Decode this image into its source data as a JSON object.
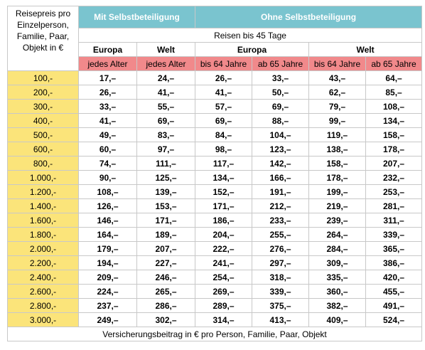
{
  "header": {
    "corner_label": "Reisepreis pro Einzelperson, Familie, Paar, Objekt in €",
    "group_with": "Mit Selbstbeteiligung",
    "group_without": "Ohne Selbstbeteiligung",
    "duration": "Reisen bis 45 Tage",
    "region_europa_1": "Europa",
    "region_welt_1": "Welt",
    "region_europa_2": "Europa",
    "region_welt_2": "Welt",
    "age_1": "jedes Alter",
    "age_2": "jedes Alter",
    "age_3": "bis 64 Jahre",
    "age_4": "ab 65 Jahre",
    "age_5": "bis 64 Jahre",
    "age_6": "ab 65 Jahre"
  },
  "rows": [
    {
      "price": "100,-",
      "v": [
        "17,–",
        "24,–",
        "26,–",
        "33,–",
        "43,–",
        "64,–"
      ]
    },
    {
      "price": "200,-",
      "v": [
        "26,–",
        "41,–",
        "41,–",
        "50,–",
        "62,–",
        "85,–"
      ]
    },
    {
      "price": "300,-",
      "v": [
        "33,–",
        "55,–",
        "57,–",
        "69,–",
        "79,–",
        "108,–"
      ]
    },
    {
      "price": "400,-",
      "v": [
        "41,–",
        "69,–",
        "69,–",
        "88,–",
        "99,–",
        "134,–"
      ]
    },
    {
      "price": "500,-",
      "v": [
        "49,–",
        "83,–",
        "84,–",
        "104,–",
        "119,–",
        "158,–"
      ]
    },
    {
      "price": "600,-",
      "v": [
        "60,–",
        "97,–",
        "98,–",
        "123,–",
        "138,–",
        "178,–"
      ]
    },
    {
      "price": "800,-",
      "v": [
        "74,–",
        "111,–",
        "117,–",
        "142,–",
        "158,–",
        "207,–"
      ]
    },
    {
      "price": "1.000,-",
      "v": [
        "90,–",
        "125,–",
        "134,–",
        "166,–",
        "178,–",
        "232,–"
      ]
    },
    {
      "price": "1.200,-",
      "v": [
        "108,–",
        "139,–",
        "152,–",
        "191,–",
        "199,–",
        "253,–"
      ]
    },
    {
      "price": "1.400,-",
      "v": [
        "126,–",
        "153,–",
        "171,–",
        "212,–",
        "219,–",
        "281,–"
      ]
    },
    {
      "price": "1.600,-",
      "v": [
        "146,–",
        "171,–",
        "186,–",
        "233,–",
        "239,–",
        "311,–"
      ]
    },
    {
      "price": "1.800,-",
      "v": [
        "164,–",
        "189,–",
        "204,–",
        "255,–",
        "264,–",
        "339,–"
      ]
    },
    {
      "price": "2.000,-",
      "v": [
        "179,–",
        "207,–",
        "222,–",
        "276,–",
        "284,–",
        "365,–"
      ]
    },
    {
      "price": "2.200,-",
      "v": [
        "194,–",
        "227,–",
        "241,–",
        "297,–",
        "309,–",
        "386,–"
      ]
    },
    {
      "price": "2.400,-",
      "v": [
        "209,–",
        "246,–",
        "254,–",
        "318,–",
        "335,–",
        "420,–"
      ]
    },
    {
      "price": "2.600,-",
      "v": [
        "224,–",
        "265,–",
        "269,–",
        "339,–",
        "360,–",
        "455,–"
      ]
    },
    {
      "price": "2.800,-",
      "v": [
        "237,–",
        "286,–",
        "289,–",
        "375,–",
        "382,–",
        "491,–"
      ]
    },
    {
      "price": "3.000,-",
      "v": [
        "249,–",
        "302,–",
        "314,–",
        "413,–",
        "409,–",
        "524,–"
      ]
    }
  ],
  "footer": "Versicherungsbeitrag in € pro Person, Familie, Paar, Objekt",
  "colors": {
    "teal": "#7ac4cf",
    "pink": "#f1898b",
    "yellow": "#fbe47a",
    "border": "#c8c8c8"
  }
}
